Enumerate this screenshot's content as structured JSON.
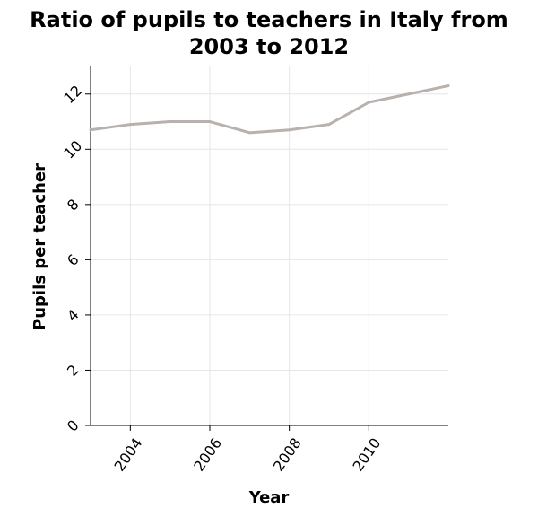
{
  "chart_data": {
    "type": "line",
    "title_line1": "Ratio of pupils to teachers in Italy from",
    "title_line2": "2003 to 2012",
    "xlabel": "Year",
    "ylabel": "Pupils per teacher",
    "xlim": [
      2003,
      2012
    ],
    "ylim": [
      0,
      13
    ],
    "xticks": [
      2004,
      2006,
      2008,
      2010
    ],
    "yticks": [
      0,
      2,
      4,
      6,
      8,
      10,
      12
    ],
    "grid": true,
    "line_color": "#b8b1ad",
    "series": [
      {
        "x": [
          2003,
          2004,
          2005,
          2006,
          2007,
          2008,
          2009,
          2010,
          2011,
          2012
        ],
        "values": [
          10.7,
          10.9,
          11.0,
          11.0,
          10.6,
          10.7,
          10.9,
          11.7,
          12.0,
          12.3
        ]
      }
    ]
  }
}
